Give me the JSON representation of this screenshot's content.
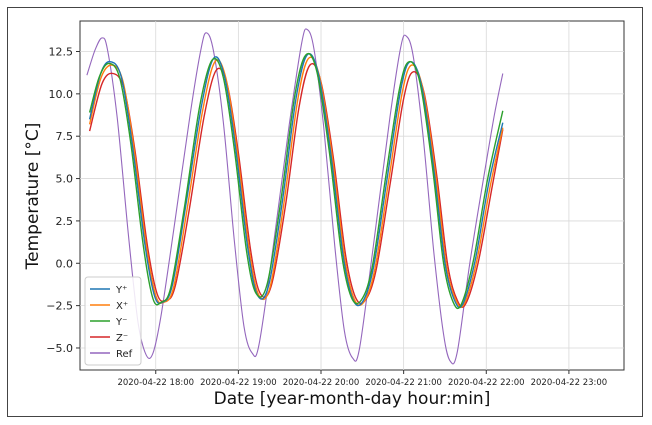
{
  "chart_data": {
    "type": "line",
    "xlabel": "Date [year-month-day hour:min]",
    "ylabel": "Temperature [°C]",
    "x_axis": {
      "start": "2020-04-22 17:05",
      "end": "2020-04-22 23:40",
      "ticks": [
        "2020-04-22 18:00",
        "2020-04-22 19:00",
        "2020-04-22 20:00",
        "2020-04-22 21:00",
        "2020-04-22 22:00",
        "2020-04-22 23:00"
      ]
    },
    "y_axis": {
      "ylim": [
        -6.3,
        14.3
      ],
      "ticks": [
        -5.0,
        -2.5,
        0.0,
        2.5,
        5.0,
        7.5,
        10.0,
        12.5
      ],
      "tick_labels": [
        "−5.0",
        "−2.5",
        "0.0",
        "2.5",
        "5.0",
        "7.5",
        "10.0",
        "12.5"
      ]
    },
    "grid": true,
    "legend_position": "lower left",
    "series": [
      {
        "name": "Y⁺",
        "color": "#1f77b4",
        "points": [
          [
            "2020-04-22 17:12",
            8.5
          ],
          [
            "2020-04-22 17:20",
            11.2
          ],
          [
            "2020-04-22 17:27",
            11.9
          ],
          [
            "2020-04-22 17:35",
            11.0
          ],
          [
            "2020-04-22 17:43",
            7.0
          ],
          [
            "2020-04-22 17:52",
            1.2
          ],
          [
            "2020-04-22 17:59",
            -1.9
          ],
          [
            "2020-04-22 18:05",
            -2.3
          ],
          [
            "2020-04-22 18:12",
            -1.3
          ],
          [
            "2020-04-22 18:22",
            3.5
          ],
          [
            "2020-04-22 18:33",
            9.2
          ],
          [
            "2020-04-22 18:42",
            12.1
          ],
          [
            "2020-04-22 18:50",
            11.0
          ],
          [
            "2020-04-22 18:58",
            6.8
          ],
          [
            "2020-04-22 19:07",
            0.8
          ],
          [
            "2020-04-22 19:14",
            -1.9
          ],
          [
            "2020-04-22 19:22",
            -1.3
          ],
          [
            "2020-04-22 19:32",
            3.7
          ],
          [
            "2020-04-22 19:42",
            9.8
          ],
          [
            "2020-04-22 19:50",
            12.3
          ],
          [
            "2020-04-22 19:58",
            11.2
          ],
          [
            "2020-04-22 20:07",
            6.5
          ],
          [
            "2020-04-22 20:16",
            0.5
          ],
          [
            "2020-04-22 20:23",
            -2.1
          ],
          [
            "2020-04-22 20:30",
            -2.3
          ],
          [
            "2020-04-22 20:38",
            -0.3
          ],
          [
            "2020-04-22 20:48",
            5.0
          ],
          [
            "2020-04-22 20:58",
            10.3
          ],
          [
            "2020-04-22 21:05",
            11.9
          ],
          [
            "2020-04-22 21:13",
            10.5
          ],
          [
            "2020-04-22 21:22",
            5.5
          ],
          [
            "2020-04-22 21:30",
            0.0
          ],
          [
            "2020-04-22 21:37",
            -2.2
          ],
          [
            "2020-04-22 21:43",
            -2.4
          ],
          [
            "2020-04-22 21:52",
            0.2
          ],
          [
            "2020-04-22 22:02",
            4.8
          ],
          [
            "2020-04-22 22:12",
            8.3
          ]
        ]
      },
      {
        "name": "X⁺",
        "color": "#ff7f0e",
        "points": [
          [
            "2020-04-22 17:12",
            8.2
          ],
          [
            "2020-04-22 17:20",
            10.9
          ],
          [
            "2020-04-22 17:28",
            11.7
          ],
          [
            "2020-04-22 17:36",
            10.8
          ],
          [
            "2020-04-22 17:44",
            6.9
          ],
          [
            "2020-04-22 17:53",
            1.1
          ],
          [
            "2020-04-22 18:00",
            -1.9
          ],
          [
            "2020-04-22 18:06",
            -2.3
          ],
          [
            "2020-04-22 18:13",
            -1.4
          ],
          [
            "2020-04-22 18:23",
            3.3
          ],
          [
            "2020-04-22 18:34",
            9.0
          ],
          [
            "2020-04-22 18:43",
            11.9
          ],
          [
            "2020-04-22 18:51",
            10.9
          ],
          [
            "2020-04-22 18:59",
            6.7
          ],
          [
            "2020-04-22 19:08",
            0.7
          ],
          [
            "2020-04-22 19:15",
            -1.9
          ],
          [
            "2020-04-22 19:23",
            -1.4
          ],
          [
            "2020-04-22 19:33",
            3.5
          ],
          [
            "2020-04-22 19:43",
            9.6
          ],
          [
            "2020-04-22 19:51",
            12.1
          ],
          [
            "2020-04-22 19:59",
            11.0
          ],
          [
            "2020-04-22 20:08",
            6.4
          ],
          [
            "2020-04-22 20:17",
            0.4
          ],
          [
            "2020-04-22 20:24",
            -2.1
          ],
          [
            "2020-04-22 20:31",
            -2.3
          ],
          [
            "2020-04-22 20:39",
            -0.4
          ],
          [
            "2020-04-22 20:49",
            4.8
          ],
          [
            "2020-04-22 20:59",
            10.1
          ],
          [
            "2020-04-22 21:06",
            11.7
          ],
          [
            "2020-04-22 21:14",
            10.3
          ],
          [
            "2020-04-22 21:23",
            5.4
          ],
          [
            "2020-04-22 21:31",
            -0.1
          ],
          [
            "2020-04-22 21:38",
            -2.2
          ],
          [
            "2020-04-22 21:44",
            -2.4
          ],
          [
            "2020-04-22 21:53",
            0.1
          ],
          [
            "2020-04-22 22:03",
            4.6
          ],
          [
            "2020-04-22 22:12",
            8.0
          ]
        ]
      },
      {
        "name": "Y⁻",
        "color": "#2ca02c",
        "points": [
          [
            "2020-04-22 17:12",
            8.9
          ],
          [
            "2020-04-22 17:19",
            11.0
          ],
          [
            "2020-04-22 17:26",
            11.8
          ],
          [
            "2020-04-22 17:34",
            10.9
          ],
          [
            "2020-04-22 17:42",
            7.0
          ],
          [
            "2020-04-22 17:51",
            1.0
          ],
          [
            "2020-04-22 17:58",
            -2.1
          ],
          [
            "2020-04-22 18:04",
            -2.3
          ],
          [
            "2020-04-22 18:11",
            -1.4
          ],
          [
            "2020-04-22 18:21",
            3.4
          ],
          [
            "2020-04-22 18:32",
            9.3
          ],
          [
            "2020-04-22 18:41",
            12.0
          ],
          [
            "2020-04-22 18:49",
            11.0
          ],
          [
            "2020-04-22 18:57",
            6.8
          ],
          [
            "2020-04-22 19:06",
            0.7
          ],
          [
            "2020-04-22 19:13",
            -1.8
          ],
          [
            "2020-04-22 19:21",
            -1.2
          ],
          [
            "2020-04-22 19:31",
            3.8
          ],
          [
            "2020-04-22 19:41",
            9.9
          ],
          [
            "2020-04-22 19:49",
            12.3
          ],
          [
            "2020-04-22 19:57",
            11.3
          ],
          [
            "2020-04-22 20:06",
            6.6
          ],
          [
            "2020-04-22 20:15",
            0.5
          ],
          [
            "2020-04-22 20:22",
            -2.0
          ],
          [
            "2020-04-22 20:29",
            -2.2
          ],
          [
            "2020-04-22 20:37",
            -0.3
          ],
          [
            "2020-04-22 20:47",
            5.1
          ],
          [
            "2020-04-22 20:57",
            10.3
          ],
          [
            "2020-04-22 21:04",
            11.9
          ],
          [
            "2020-04-22 21:12",
            10.6
          ],
          [
            "2020-04-22 21:21",
            5.6
          ],
          [
            "2020-04-22 21:29",
            0.0
          ],
          [
            "2020-04-22 21:36",
            -2.3
          ],
          [
            "2020-04-22 21:42",
            -2.4
          ],
          [
            "2020-04-22 21:51",
            0.3
          ],
          [
            "2020-04-22 22:01",
            5.0
          ],
          [
            "2020-04-22 22:12",
            9.0
          ]
        ]
      },
      {
        "name": "Z⁻",
        "color": "#d62728",
        "points": [
          [
            "2020-04-22 17:12",
            7.8
          ],
          [
            "2020-04-22 17:21",
            10.6
          ],
          [
            "2020-04-22 17:29",
            11.2
          ],
          [
            "2020-04-22 17:37",
            10.3
          ],
          [
            "2020-04-22 17:45",
            6.6
          ],
          [
            "2020-04-22 17:54",
            1.0
          ],
          [
            "2020-04-22 18:01",
            -1.8
          ],
          [
            "2020-04-22 18:07",
            -2.2
          ],
          [
            "2020-04-22 18:14",
            -1.4
          ],
          [
            "2020-04-22 18:24",
            3.0
          ],
          [
            "2020-04-22 18:35",
            8.6
          ],
          [
            "2020-04-22 18:44",
            11.4
          ],
          [
            "2020-04-22 18:52",
            10.5
          ],
          [
            "2020-04-22 19:00",
            6.5
          ],
          [
            "2020-04-22 19:09",
            0.7
          ],
          [
            "2020-04-22 19:16",
            -1.8
          ],
          [
            "2020-04-22 19:24",
            -1.3
          ],
          [
            "2020-04-22 19:34",
            3.3
          ],
          [
            "2020-04-22 19:44",
            9.2
          ],
          [
            "2020-04-22 19:52",
            11.7
          ],
          [
            "2020-04-22 20:00",
            10.7
          ],
          [
            "2020-04-22 20:09",
            6.2
          ],
          [
            "2020-04-22 20:18",
            0.4
          ],
          [
            "2020-04-22 20:25",
            -2.0
          ],
          [
            "2020-04-22 20:32",
            -2.2
          ],
          [
            "2020-04-22 20:40",
            -0.4
          ],
          [
            "2020-04-22 20:50",
            4.6
          ],
          [
            "2020-04-22 21:00",
            9.7
          ],
          [
            "2020-04-22 21:07",
            11.3
          ],
          [
            "2020-04-22 21:15",
            10.0
          ],
          [
            "2020-04-22 21:24",
            5.2
          ],
          [
            "2020-04-22 21:32",
            -0.1
          ],
          [
            "2020-04-22 21:39",
            -2.2
          ],
          [
            "2020-04-22 21:45",
            -2.4
          ],
          [
            "2020-04-22 21:54",
            0.0
          ],
          [
            "2020-04-22 22:04",
            4.4
          ],
          [
            "2020-04-22 22:12",
            7.9
          ]
        ]
      },
      {
        "name": "Ref",
        "color": "#9467bd",
        "points": [
          [
            "2020-04-22 17:10",
            11.1
          ],
          [
            "2020-04-22 17:16",
            12.6
          ],
          [
            "2020-04-22 17:21",
            13.3
          ],
          [
            "2020-04-22 17:25",
            12.6
          ],
          [
            "2020-04-22 17:32",
            8.6
          ],
          [
            "2020-04-22 17:40",
            1.8
          ],
          [
            "2020-04-22 17:47",
            -3.4
          ],
          [
            "2020-04-22 17:53",
            -5.4
          ],
          [
            "2020-04-22 17:58",
            -5.3
          ],
          [
            "2020-04-22 18:04",
            -3.0
          ],
          [
            "2020-04-22 18:14",
            2.5
          ],
          [
            "2020-04-22 18:25",
            8.8
          ],
          [
            "2020-04-22 18:33",
            12.7
          ],
          [
            "2020-04-22 18:37",
            13.6
          ],
          [
            "2020-04-22 18:42",
            12.5
          ],
          [
            "2020-04-22 18:49",
            8.4
          ],
          [
            "2020-04-22 18:57",
            1.4
          ],
          [
            "2020-04-22 19:04",
            -3.7
          ],
          [
            "2020-04-22 19:10",
            -5.3
          ],
          [
            "2020-04-22 19:15",
            -4.8
          ],
          [
            "2020-04-22 19:25",
            0.8
          ],
          [
            "2020-04-22 19:37",
            8.2
          ],
          [
            "2020-04-22 19:46",
            13.0
          ],
          [
            "2020-04-22 19:50",
            13.8
          ],
          [
            "2020-04-22 19:55",
            12.6
          ],
          [
            "2020-04-22 20:02",
            8.0
          ],
          [
            "2020-04-22 20:10",
            1.0
          ],
          [
            "2020-04-22 20:17",
            -4.0
          ],
          [
            "2020-04-22 20:23",
            -5.6
          ],
          [
            "2020-04-22 20:28",
            -5.0
          ],
          [
            "2020-04-22 20:38",
            1.0
          ],
          [
            "2020-04-22 20:50",
            8.6
          ],
          [
            "2020-04-22 20:58",
            12.8
          ],
          [
            "2020-04-22 21:02",
            13.4
          ],
          [
            "2020-04-22 21:07",
            12.2
          ],
          [
            "2020-04-22 21:14",
            7.6
          ],
          [
            "2020-04-22 21:22",
            0.6
          ],
          [
            "2020-04-22 21:29",
            -4.2
          ],
          [
            "2020-04-22 21:34",
            -5.8
          ],
          [
            "2020-04-22 21:39",
            -5.2
          ],
          [
            "2020-04-22 21:48",
            0.0
          ],
          [
            "2020-04-22 21:58",
            5.0
          ],
          [
            "2020-04-22 22:06",
            8.8
          ],
          [
            "2020-04-22 22:12",
            11.2
          ]
        ]
      }
    ]
  }
}
